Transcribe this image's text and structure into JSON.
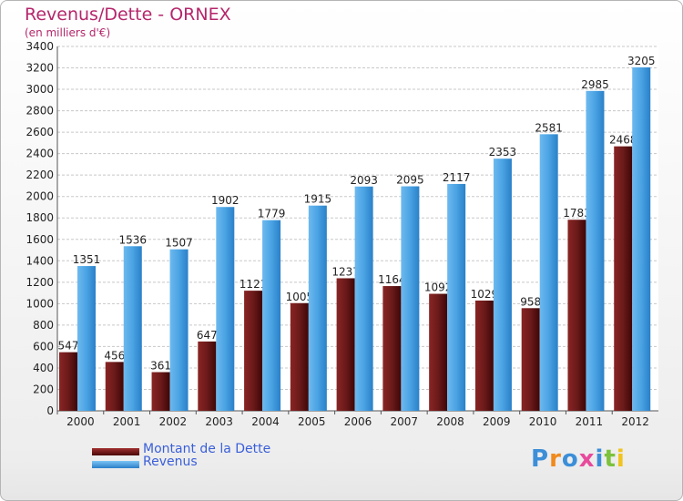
{
  "chart_data": {
    "type": "bar",
    "title": "Revenus/Dette - ORNEX",
    "subtitle": "(en milliers d'€)",
    "xlabel": "",
    "ylabel": "",
    "categories": [
      "2000",
      "2001",
      "2002",
      "2003",
      "2004",
      "2005",
      "2006",
      "2007",
      "2008",
      "2009",
      "2010",
      "2011",
      "2012"
    ],
    "series": [
      {
        "name": "Montant de la Dette",
        "color": "#6b1a1a",
        "values": [
          547,
          456,
          361,
          647,
          1121,
          1005,
          1237,
          1164,
          1092,
          1029,
          958,
          1783,
          2468
        ],
        "labels": [
          "547",
          "456",
          "361",
          "647",
          "1121",
          "1005",
          "1237",
          "1164",
          "1092",
          "1029",
          "958",
          "1783",
          "2468"
        ]
      },
      {
        "name": "Revenus",
        "color": "#4aa3e3",
        "values": [
          1351,
          1536,
          1507,
          1902,
          1779,
          1915,
          2093,
          2095,
          2117,
          2353,
          2581,
          2985,
          3205
        ],
        "labels": [
          "1351",
          "1536",
          "1507",
          "1902",
          "1779",
          "1915",
          "2093",
          "2095",
          "2117",
          "2353",
          "2581",
          "2985",
          "3205"
        ]
      }
    ],
    "ylim": [
      0,
      3400
    ],
    "yticks": [
      "0",
      "200",
      "400",
      "600",
      "800",
      "1000",
      "1200",
      "1400",
      "1600",
      "1800",
      "2000",
      "2200",
      "2400",
      "2600",
      "2800",
      "3000",
      "3200",
      "3400"
    ],
    "grid": true,
    "legend": "bottom-left"
  },
  "logo": {
    "text": "Proxiti",
    "colors": [
      "#3c8ed8",
      "#f08a1c",
      "#3c8ed8",
      "#e84a9c",
      "#3c8ed8",
      "#7cc23c",
      "#f0c41c"
    ]
  }
}
